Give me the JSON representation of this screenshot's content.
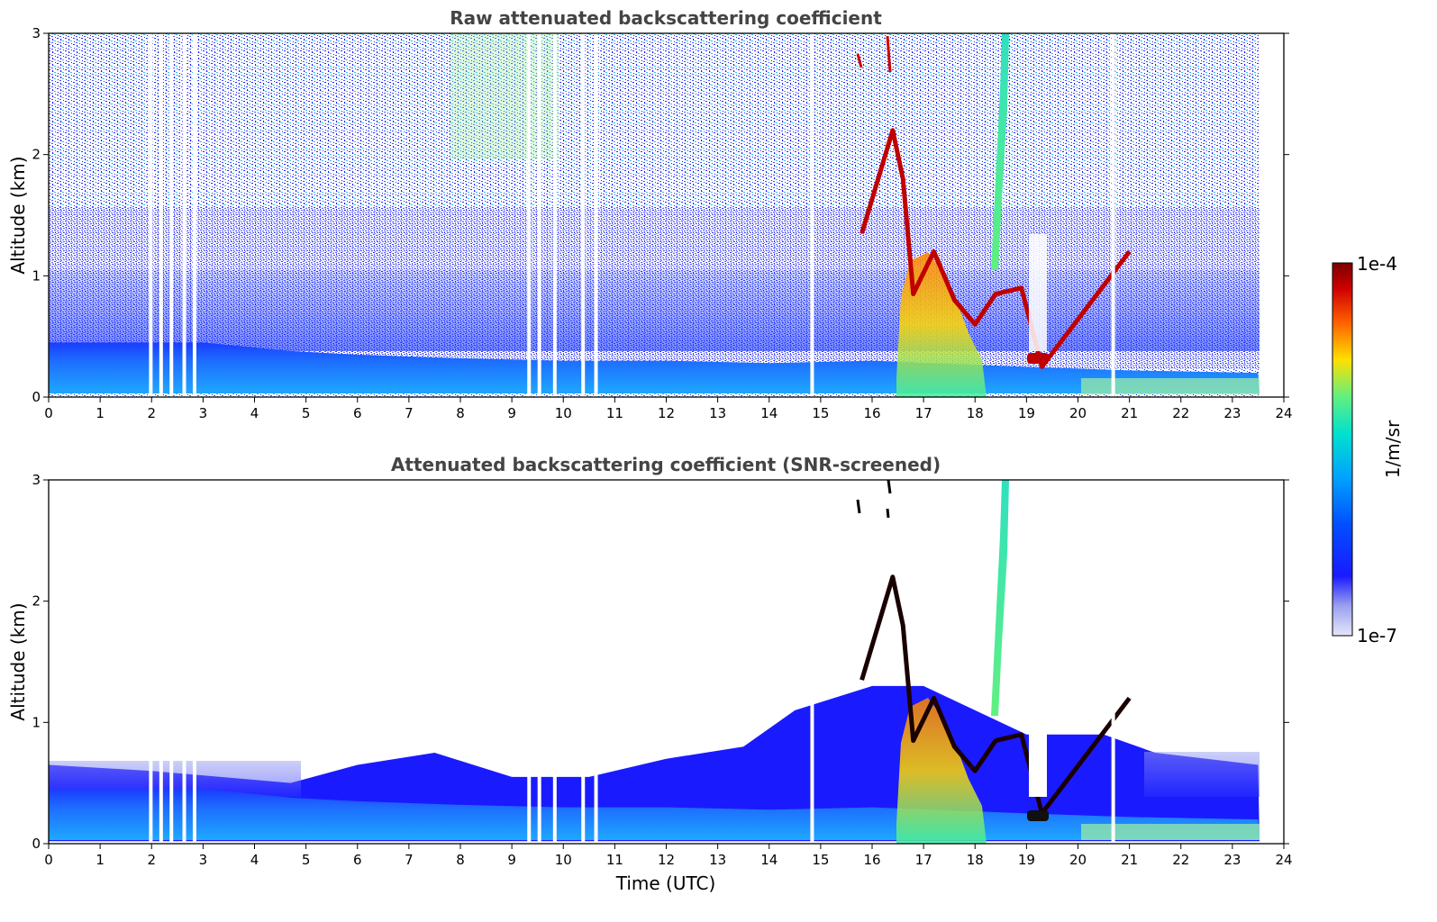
{
  "chart_data": [
    {
      "type": "heatmap",
      "title": "Raw attenuated backscattering coefficient",
      "xlabel": "",
      "ylabel": "Altitude (km)",
      "xlim": [
        0,
        24
      ],
      "ylim": [
        0,
        3
      ],
      "xticks": [
        "0",
        "1",
        "2",
        "3",
        "4",
        "5",
        "6",
        "7",
        "8",
        "9",
        "10",
        "11",
        "12",
        "13",
        "14",
        "15",
        "16",
        "17",
        "18",
        "19",
        "20",
        "21",
        "22",
        "23",
        "24"
      ],
      "yticks": [
        "0",
        "1",
        "2",
        "3"
      ],
      "features": {
        "boundary_layer_top_km": [
          {
            "t": 0,
            "z": 0.45
          },
          {
            "t": 3,
            "z": 0.45
          },
          {
            "t": 4.7,
            "z": 0.38
          },
          {
            "t": 6,
            "z": 0.35
          },
          {
            "t": 8,
            "z": 0.32
          },
          {
            "t": 10,
            "z": 0.3
          },
          {
            "t": 12,
            "z": 0.3
          },
          {
            "t": 14,
            "z": 0.28
          },
          {
            "t": 16,
            "z": 0.3
          },
          {
            "t": 19,
            "z": 0.25
          },
          {
            "t": 21,
            "z": 0.22
          },
          {
            "t": 23.5,
            "z": 0.2
          }
        ],
        "cloud_layer_km": [
          {
            "t": 15.8,
            "z": 1.35
          },
          {
            "t": 16.4,
            "z": 2.2
          },
          {
            "t": 16.6,
            "z": 1.8
          },
          {
            "t": 16.8,
            "z": 0.85
          },
          {
            "t": 17.2,
            "z": 1.2
          },
          {
            "t": 17.6,
            "z": 0.8
          },
          {
            "t": 18.0,
            "z": 0.6
          },
          {
            "t": 18.4,
            "z": 0.85
          },
          {
            "t": 18.9,
            "z": 0.9
          },
          {
            "t": 19.3,
            "z": 0.25
          },
          {
            "t": 21.0,
            "z": 1.2
          }
        ],
        "data_gaps_utc": [
          1.95,
          2.15,
          2.35,
          2.6,
          2.8,
          9.3,
          9.5,
          9.8,
          10.35,
          10.6,
          14.8,
          20.65
        ]
      }
    },
    {
      "type": "heatmap",
      "title": "Attenuated backscattering coefficient (SNR-screened)",
      "xlabel": "Time (UTC)",
      "ylabel": "Altitude (km)",
      "xlim": [
        0,
        24
      ],
      "ylim": [
        0,
        3
      ],
      "xticks": [
        "0",
        "1",
        "2",
        "3",
        "4",
        "5",
        "6",
        "7",
        "8",
        "9",
        "10",
        "11",
        "12",
        "13",
        "14",
        "15",
        "16",
        "17",
        "18",
        "19",
        "20",
        "21",
        "22",
        "23",
        "24"
      ],
      "yticks": [
        "0",
        "1",
        "2",
        "3"
      ],
      "features": {
        "screened_layer_top_km": [
          {
            "t": 0,
            "z": 0.65
          },
          {
            "t": 2,
            "z": 0.6
          },
          {
            "t": 4.7,
            "z": 0.5
          },
          {
            "t": 6,
            "z": 0.65
          },
          {
            "t": 7.5,
            "z": 0.75
          },
          {
            "t": 9,
            "z": 0.55
          },
          {
            "t": 10.5,
            "z": 0.55
          },
          {
            "t": 12,
            "z": 0.7
          },
          {
            "t": 13.5,
            "z": 0.8
          },
          {
            "t": 14.5,
            "z": 1.1
          },
          {
            "t": 16,
            "z": 1.3
          },
          {
            "t": 17,
            "z": 1.3
          },
          {
            "t": 19,
            "z": 0.9
          },
          {
            "t": 20.5,
            "z": 0.9
          },
          {
            "t": 21.5,
            "z": 0.75
          },
          {
            "t": 23.5,
            "z": 0.65
          }
        ]
      }
    }
  ],
  "colorbar": {
    "label": "1/m/sr",
    "max_label": "1e-4",
    "min_label": "1e-7",
    "colors": [
      "#e6e6fa",
      "#9aa0ee",
      "#1a1aff",
      "#0050ff",
      "#00a0ff",
      "#00e0d0",
      "#60f080",
      "#ffe000",
      "#ff6000",
      "#d00000",
      "#7a0000"
    ]
  }
}
